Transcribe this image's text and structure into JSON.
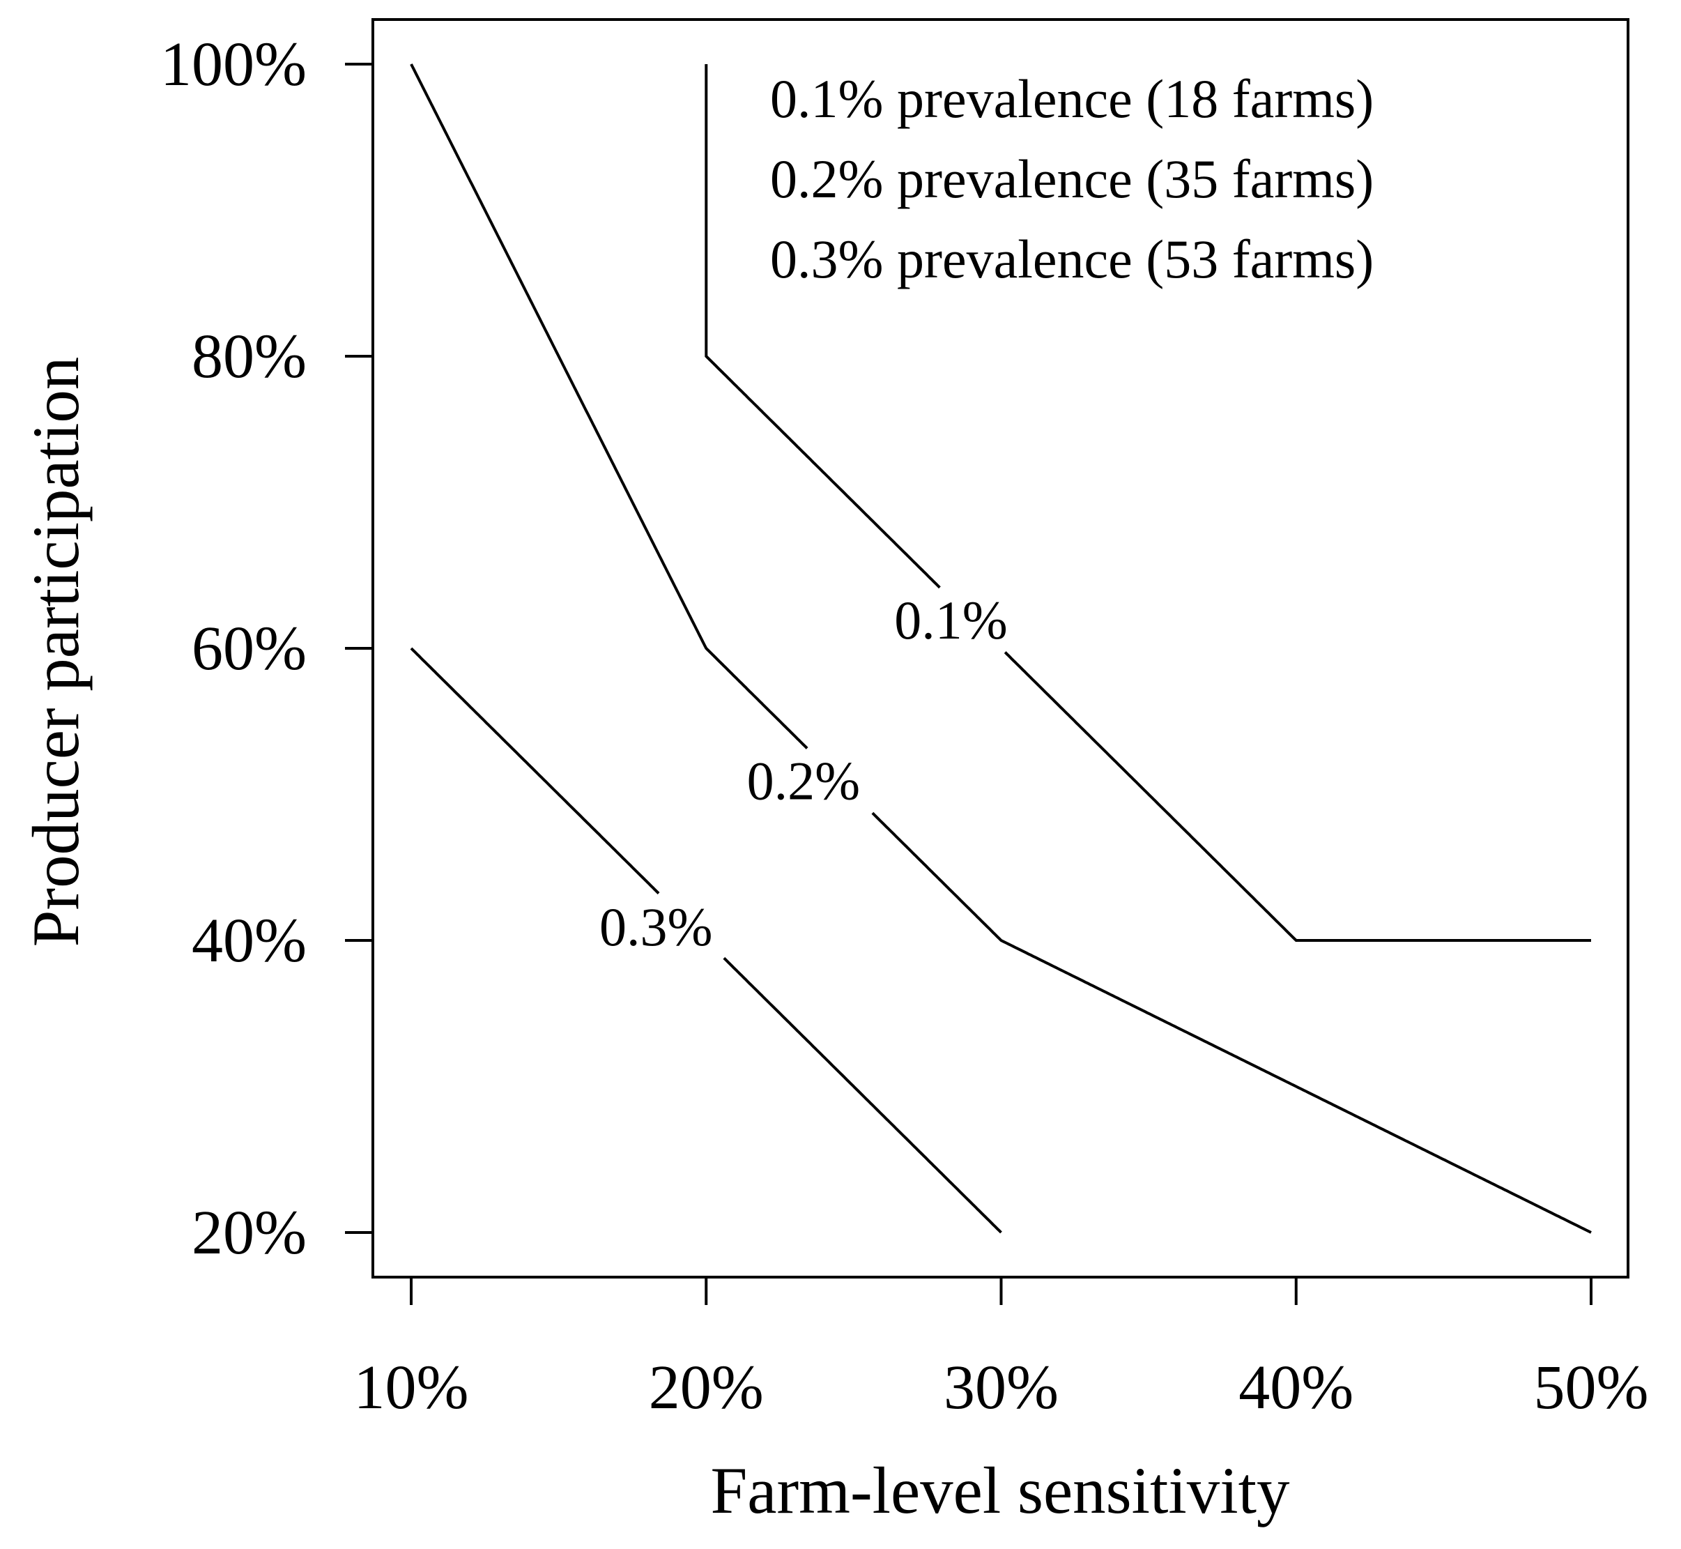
{
  "chart_data": {
    "type": "line",
    "title": "",
    "xlabel": "Farm-level sensitivity",
    "ylabel": "Producer participation",
    "xlim": [
      10,
      50
    ],
    "ylim": [
      20,
      100
    ],
    "x_ticks": [
      10,
      20,
      30,
      40,
      50
    ],
    "x_tick_labels": [
      "10%",
      "20%",
      "30%",
      "40%",
      "50%"
    ],
    "y_ticks": [
      20,
      40,
      60,
      80,
      100
    ],
    "y_tick_labels": [
      "20%",
      "40%",
      "60%",
      "80%",
      "100%"
    ],
    "grid": false,
    "legend_position": "top-right",
    "legend_lines": [
      "0.1% prevalence (18 farms)",
      "0.2% prevalence (35 farms)",
      "0.3% prevalence (53 farms)"
    ],
    "series": [
      {
        "name": "0.1%",
        "points": [
          [
            20,
            100
          ],
          [
            20,
            80
          ],
          [
            30,
            60
          ],
          [
            40,
            40
          ],
          [
            50,
            40
          ]
        ],
        "label_at": [
          28.3,
          62
        ]
      },
      {
        "name": "0.2%",
        "points": [
          [
            10,
            100
          ],
          [
            20,
            60
          ],
          [
            30,
            40
          ],
          [
            40,
            30
          ],
          [
            50,
            20
          ]
        ],
        "label_at": [
          23.3,
          51
        ]
      },
      {
        "name": "0.3%",
        "points": [
          [
            10,
            60
          ],
          [
            30,
            20
          ]
        ],
        "label_at": [
          18.3,
          41
        ]
      }
    ]
  }
}
